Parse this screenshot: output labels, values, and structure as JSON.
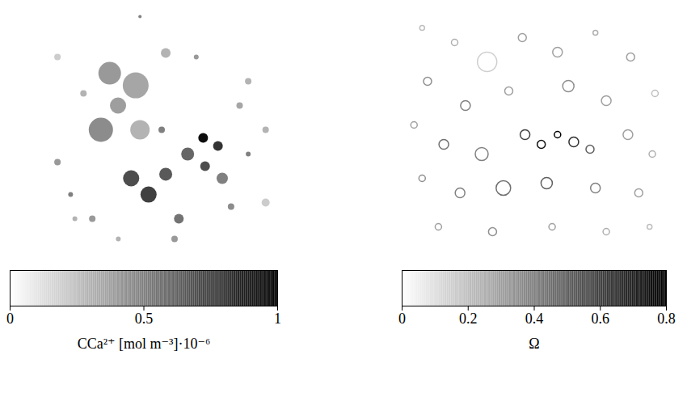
{
  "chart_data": [
    {
      "type": "heatmap",
      "marker": "filled",
      "tick_labels": false,
      "xlim": [
        0,
        100
      ],
      "ylim": [
        0,
        100
      ],
      "cells": [
        {
          "x": 25.5,
          "y": 26.7,
          "r": 14,
          "value": 0.4
        },
        {
          "x": 36.4,
          "y": 31.7,
          "r": 16,
          "value": 0.35
        },
        {
          "x": 21.8,
          "y": 50,
          "r": 15,
          "value": 0.45
        },
        {
          "x": 38.2,
          "y": 50,
          "r": 12,
          "value": 0.3
        },
        {
          "x": 29,
          "y": 40,
          "r": 10,
          "value": 0.38
        },
        {
          "x": 34.5,
          "y": 70,
          "r": 10,
          "value": 0.7
        },
        {
          "x": 41.8,
          "y": 76.7,
          "r": 10,
          "value": 0.75
        },
        {
          "x": 49,
          "y": 68.3,
          "r": 8,
          "value": 0.65
        },
        {
          "x": 64.7,
          "y": 53.3,
          "r": 6,
          "value": 0.95
        },
        {
          "x": 70.9,
          "y": 56.7,
          "r": 6,
          "value": 0.8
        },
        {
          "x": 58.2,
          "y": 60,
          "r": 8,
          "value": 0.6
        },
        {
          "x": 72.7,
          "y": 70,
          "r": 7,
          "value": 0.5
        },
        {
          "x": 65.5,
          "y": 65,
          "r": 6,
          "value": 0.7
        },
        {
          "x": 54.5,
          "y": 86.7,
          "r": 6,
          "value": 0.55
        },
        {
          "x": 52.7,
          "y": 95,
          "r": 4,
          "value": 0.4
        },
        {
          "x": 3.6,
          "y": 63.3,
          "r": 4,
          "value": 0.4
        },
        {
          "x": 9.1,
          "y": 76.7,
          "r": 3,
          "value": 0.5
        },
        {
          "x": 10.9,
          "y": 86.7,
          "r": 3,
          "value": 0.3
        },
        {
          "x": 49,
          "y": 18.3,
          "r": 6,
          "value": 0.3
        },
        {
          "x": 61.8,
          "y": 20,
          "r": 3,
          "value": 0.4
        },
        {
          "x": 83.6,
          "y": 30,
          "r": 4,
          "value": 0.3
        },
        {
          "x": 80,
          "y": 40,
          "r": 4,
          "value": 0.35
        },
        {
          "x": 90.9,
          "y": 50,
          "r": 4,
          "value": 0.3
        },
        {
          "x": 90.9,
          "y": 80,
          "r": 5,
          "value": 0.2
        },
        {
          "x": 18.2,
          "y": 86.7,
          "r": 4,
          "value": 0.4
        },
        {
          "x": 29.1,
          "y": 95,
          "r": 3,
          "value": 0.3
        },
        {
          "x": 47.3,
          "y": 50,
          "r": 4,
          "value": 0.5
        },
        {
          "x": 14.5,
          "y": 35,
          "r": 4,
          "value": 0.3
        },
        {
          "x": 3.6,
          "y": 20,
          "r": 4,
          "value": 0.2
        },
        {
          "x": 76.4,
          "y": 81.7,
          "r": 4,
          "value": 0.45
        },
        {
          "x": 83.6,
          "y": 60,
          "r": 3,
          "value": 0.5
        },
        {
          "x": 38.2,
          "y": 3.3,
          "r": 2,
          "value": 0.5
        }
      ],
      "colorbar_label": "CCa²⁺ [mol m⁻³]·10⁻⁶",
      "colorbar_lim": [
        0,
        1
      ],
      "colorbar_ticks": [
        0,
        0.5,
        1
      ]
    },
    {
      "type": "heatmap",
      "marker": "outline",
      "tick_labels": false,
      "xlim": [
        0,
        100
      ],
      "ylim": [
        0,
        100
      ],
      "cells": [
        {
          "x": 8,
          "y": 8,
          "r": 3,
          "value": 0.2
        },
        {
          "x": 20,
          "y": 14,
          "r": 4,
          "value": 0.25
        },
        {
          "x": 32,
          "y": 22,
          "r": 12,
          "value": 0.15
        },
        {
          "x": 45,
          "y": 12,
          "r": 5,
          "value": 0.3
        },
        {
          "x": 58,
          "y": 18,
          "r": 6,
          "value": 0.3
        },
        {
          "x": 72,
          "y": 10,
          "r": 3,
          "value": 0.25
        },
        {
          "x": 85,
          "y": 20,
          "r": 5,
          "value": 0.3
        },
        {
          "x": 94,
          "y": 35,
          "r": 4,
          "value": 0.2
        },
        {
          "x": 10,
          "y": 30,
          "r": 5,
          "value": 0.35
        },
        {
          "x": 24,
          "y": 40,
          "r": 6,
          "value": 0.4
        },
        {
          "x": 40,
          "y": 34,
          "r": 5,
          "value": 0.3
        },
        {
          "x": 62,
          "y": 32,
          "r": 7,
          "value": 0.35
        },
        {
          "x": 76,
          "y": 38,
          "r": 6,
          "value": 0.3
        },
        {
          "x": 5,
          "y": 48,
          "r": 4,
          "value": 0.3
        },
        {
          "x": 16,
          "y": 56,
          "r": 6,
          "value": 0.45
        },
        {
          "x": 30,
          "y": 60,
          "r": 8,
          "value": 0.4
        },
        {
          "x": 46,
          "y": 52,
          "r": 6,
          "value": 0.6
        },
        {
          "x": 52,
          "y": 56,
          "r": 5,
          "value": 0.75
        },
        {
          "x": 58,
          "y": 52,
          "r": 4,
          "value": 0.8
        },
        {
          "x": 64,
          "y": 55,
          "r": 6,
          "value": 0.65
        },
        {
          "x": 70,
          "y": 58,
          "r": 5,
          "value": 0.5
        },
        {
          "x": 84,
          "y": 52,
          "r": 6,
          "value": 0.3
        },
        {
          "x": 93,
          "y": 60,
          "r": 4,
          "value": 0.25
        },
        {
          "x": 8,
          "y": 70,
          "r": 4,
          "value": 0.35
        },
        {
          "x": 22,
          "y": 76,
          "r": 6,
          "value": 0.4
        },
        {
          "x": 38,
          "y": 74,
          "r": 9,
          "value": 0.45
        },
        {
          "x": 54,
          "y": 72,
          "r": 7,
          "value": 0.5
        },
        {
          "x": 72,
          "y": 74,
          "r": 6,
          "value": 0.4
        },
        {
          "x": 88,
          "y": 76,
          "r": 5,
          "value": 0.3
        },
        {
          "x": 14,
          "y": 90,
          "r": 4,
          "value": 0.3
        },
        {
          "x": 34,
          "y": 92,
          "r": 5,
          "value": 0.35
        },
        {
          "x": 56,
          "y": 90,
          "r": 4,
          "value": 0.3
        },
        {
          "x": 76,
          "y": 92,
          "r": 4,
          "value": 0.25
        },
        {
          "x": 92,
          "y": 90,
          "r": 3,
          "value": 0.2
        }
      ],
      "colorbar_label": "Ω",
      "colorbar_lim": [
        0,
        0.8
      ],
      "colorbar_ticks": [
        0,
        0.2,
        0.4,
        0.6,
        0.8
      ]
    }
  ]
}
